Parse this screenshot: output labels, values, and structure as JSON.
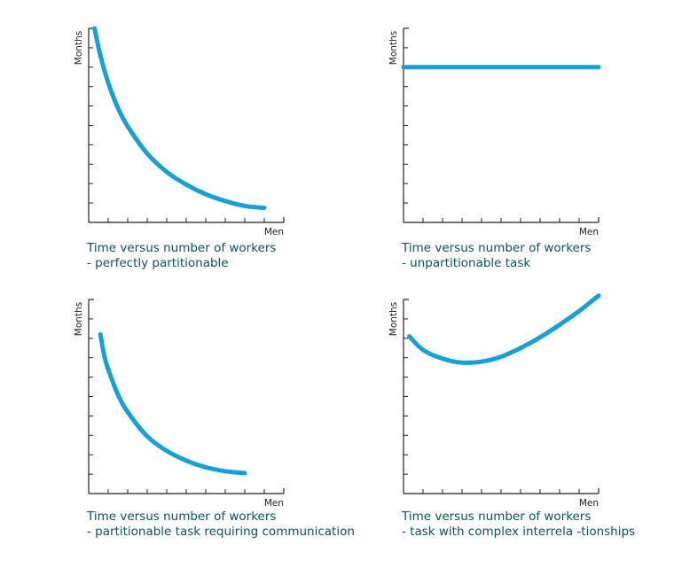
{
  "chart_data": [
    {
      "type": "line",
      "ylabel": "Months",
      "xlabel": "Men",
      "caption_line1": "Time versus number of workers",
      "caption_line2": "- perfectly partitionable",
      "xlim": [
        0,
        10
      ],
      "ylim": [
        0,
        10
      ],
      "grid": false,
      "color": "#18a0d6",
      "series": [
        {
          "x": [
            0.3,
            0.6,
            1,
            1.5,
            2,
            3,
            4,
            5,
            6,
            7,
            8,
            9.0
          ],
          "y": [
            10.0,
            8.6,
            7.2,
            5.9,
            4.95,
            3.55,
            2.6,
            1.95,
            1.45,
            1.1,
            0.85,
            0.75
          ]
        }
      ]
    },
    {
      "type": "line",
      "ylabel": "Months",
      "xlabel": "Men",
      "caption_line1": "Time versus number of workers",
      "caption_line2": "- unpartitionable task",
      "xlim": [
        0,
        10
      ],
      "ylim": [
        0,
        10
      ],
      "grid": false,
      "color": "#18a0d6",
      "series": [
        {
          "x": [
            0,
            10
          ],
          "y": [
            8.0,
            8.0
          ]
        }
      ]
    },
    {
      "type": "line",
      "ylabel": "Months",
      "xlabel": "Men",
      "caption_line1": "Time versus number of workers",
      "caption_line2": "- partitionable task requiring communication",
      "xlim": [
        0,
        10
      ],
      "ylim": [
        0,
        10
      ],
      "grid": false,
      "color": "#18a0d6",
      "series": [
        {
          "x": [
            0.6,
            0.8,
            1,
            1.5,
            2,
            3,
            4,
            5,
            6,
            7,
            8.0
          ],
          "y": [
            8.2,
            7.1,
            6.4,
            5.1,
            4.2,
            2.95,
            2.2,
            1.7,
            1.35,
            1.15,
            1.05
          ]
        }
      ]
    },
    {
      "type": "line",
      "ylabel": "Months",
      "xlabel": "Men",
      "caption_line1": "Time versus number of workers",
      "caption_line2": "- task with complex interrela -tionships",
      "xlim": [
        0,
        10
      ],
      "ylim": [
        0,
        10
      ],
      "grid": false,
      "color": "#18a0d6",
      "series": [
        {
          "x": [
            0.3,
            1,
            2,
            3,
            4,
            5,
            6,
            7,
            8,
            9,
            10
          ],
          "y": [
            8.1,
            7.4,
            6.95,
            6.75,
            6.8,
            7.05,
            7.5,
            8.05,
            8.7,
            9.4,
            10.2
          ]
        }
      ]
    }
  ]
}
